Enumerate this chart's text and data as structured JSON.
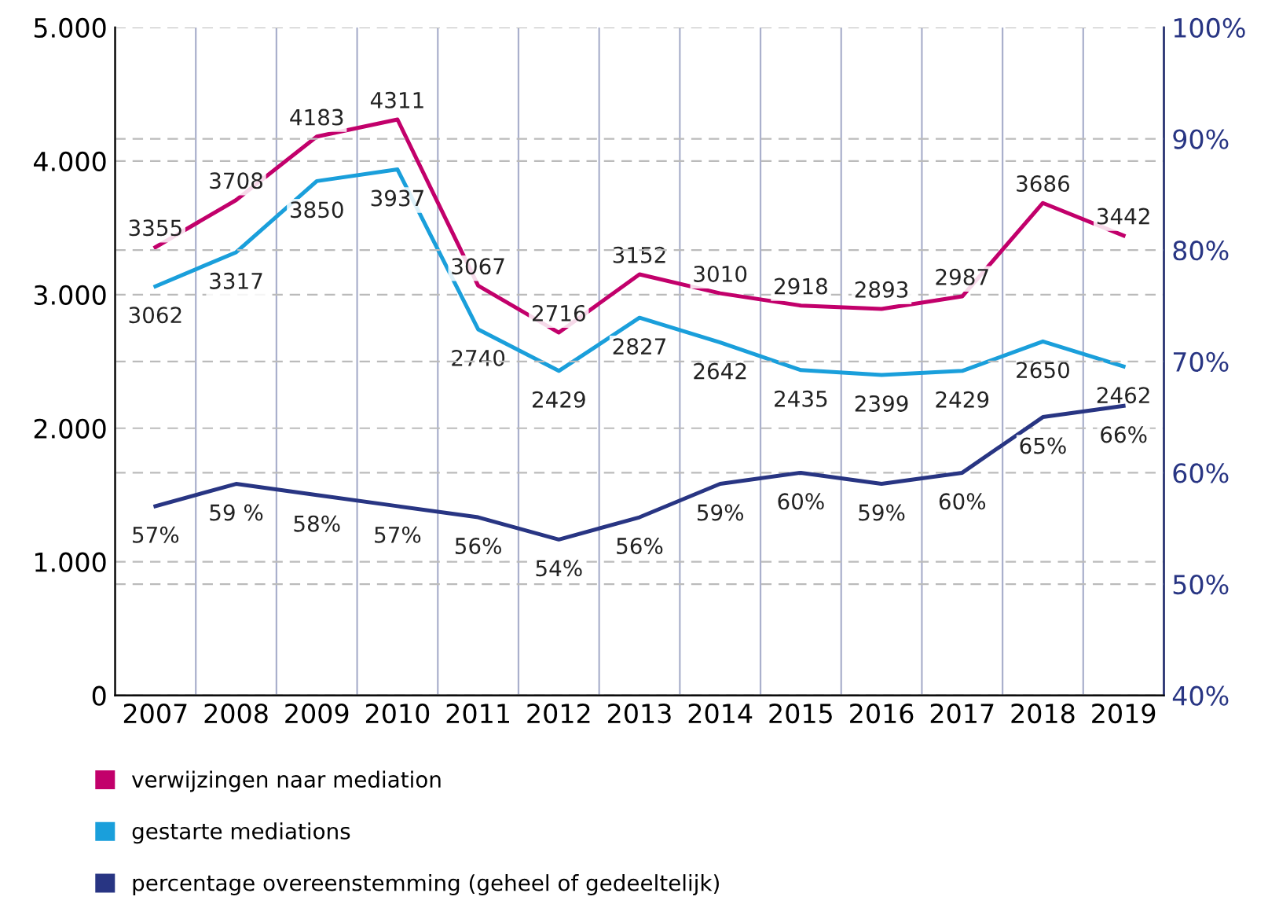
{
  "chart_data": {
    "type": "line",
    "categories": [
      "2007",
      "2008",
      "2009",
      "2010",
      "2011",
      "2012",
      "2013",
      "2014",
      "2015",
      "2016",
      "2017",
      "2018",
      "2019"
    ],
    "series": [
      {
        "name": "verwijzingen naar mediation",
        "color": "#c2006b",
        "values": [
          3355,
          3708,
          4183,
          4311,
          3067,
          2716,
          3152,
          3010,
          2918,
          2893,
          2987,
          3686,
          3442
        ],
        "value_labels": [
          "3355",
          "3708",
          "4183",
          "4311",
          "3067",
          "2716",
          "3152",
          "3010",
          "2918",
          "2893",
          "2987",
          "3686",
          "3442"
        ]
      },
      {
        "name": "gestarte mediations",
        "color": "#1a9fdb",
        "values": [
          3062,
          3317,
          3850,
          3937,
          2740,
          2429,
          2827,
          2642,
          2435,
          2399,
          2429,
          2650,
          2462
        ],
        "value_labels": [
          "3062",
          "3317",
          "3850",
          "3937",
          "2740",
          "2429",
          "2827",
          "2642",
          "2435",
          "2399",
          "2429",
          "2650",
          "2462"
        ]
      },
      {
        "name": "percentage overeenstemming (geheel of gedeeltelijk)",
        "color": "#283583",
        "axis": "y2",
        "values": [
          57,
          59,
          58,
          57,
          56,
          54,
          56,
          59,
          60,
          59,
          60,
          65,
          66
        ],
        "value_labels": [
          "57%",
          "59 %",
          "58%",
          "57%",
          "56%",
          "54%",
          "56%",
          "59%",
          "60%",
          "59%",
          "60%",
          "65%",
          "66%"
        ]
      }
    ],
    "ylim": [
      0,
      5000
    ],
    "yticks": [
      {
        "value": 0,
        "label": "0"
      },
      {
        "value": 1000,
        "label": "1.000"
      },
      {
        "value": 2000,
        "label": "2.000"
      },
      {
        "value": 3000,
        "label": "3.000"
      },
      {
        "value": 4000,
        "label": "4.000"
      },
      {
        "value": 5000,
        "label": "5.000"
      }
    ],
    "y2lim": [
      40,
      100
    ],
    "y2ticks": [
      {
        "value": 40,
        "label": "40%"
      },
      {
        "value": 50,
        "label": "50%"
      },
      {
        "value": 60,
        "label": "60%"
      },
      {
        "value": 70,
        "label": "70%"
      },
      {
        "value": 80,
        "label": "80%"
      },
      {
        "value": 90,
        "label": "90%"
      },
      {
        "value": 100,
        "label": "100%"
      }
    ],
    "grid": true,
    "legend": "bottom",
    "marker": "none",
    "line_style": "solid"
  }
}
